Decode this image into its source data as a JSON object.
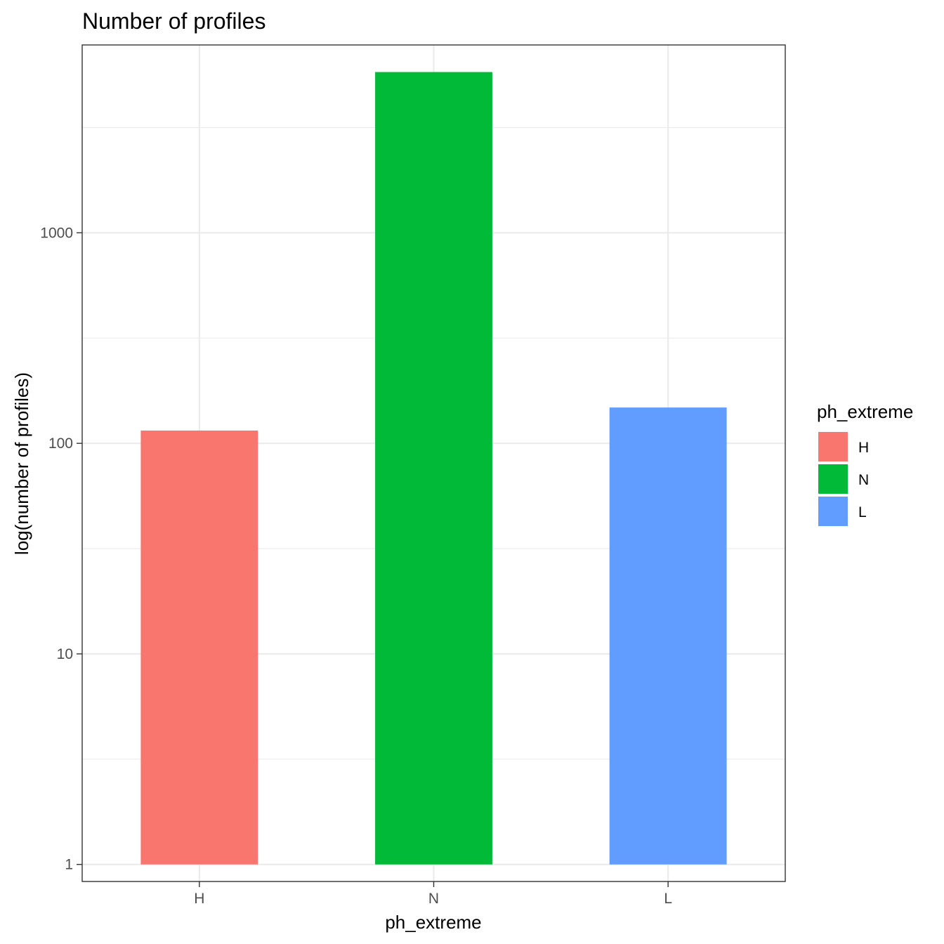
{
  "chart_data": {
    "type": "bar",
    "title": "Number of profiles",
    "xlabel": "ph_extreme",
    "ylabel": "log(number of profiles)",
    "y_scale": "log10",
    "ylim": [
      0.83,
      7800
    ],
    "y_ticks": [
      1,
      10,
      100,
      1000
    ],
    "y_tick_labels": [
      "1",
      "10",
      "100",
      "1000"
    ],
    "categories": [
      "H",
      "N",
      "L"
    ],
    "values": [
      115,
      5800,
      148
    ],
    "bar_baseline": 1,
    "colors": [
      "#F8766D",
      "#00BA38",
      "#619CFF"
    ],
    "grid": true,
    "legend": {
      "title": "ph_extreme",
      "position": "right",
      "entries": [
        "H",
        "N",
        "L"
      ]
    }
  }
}
